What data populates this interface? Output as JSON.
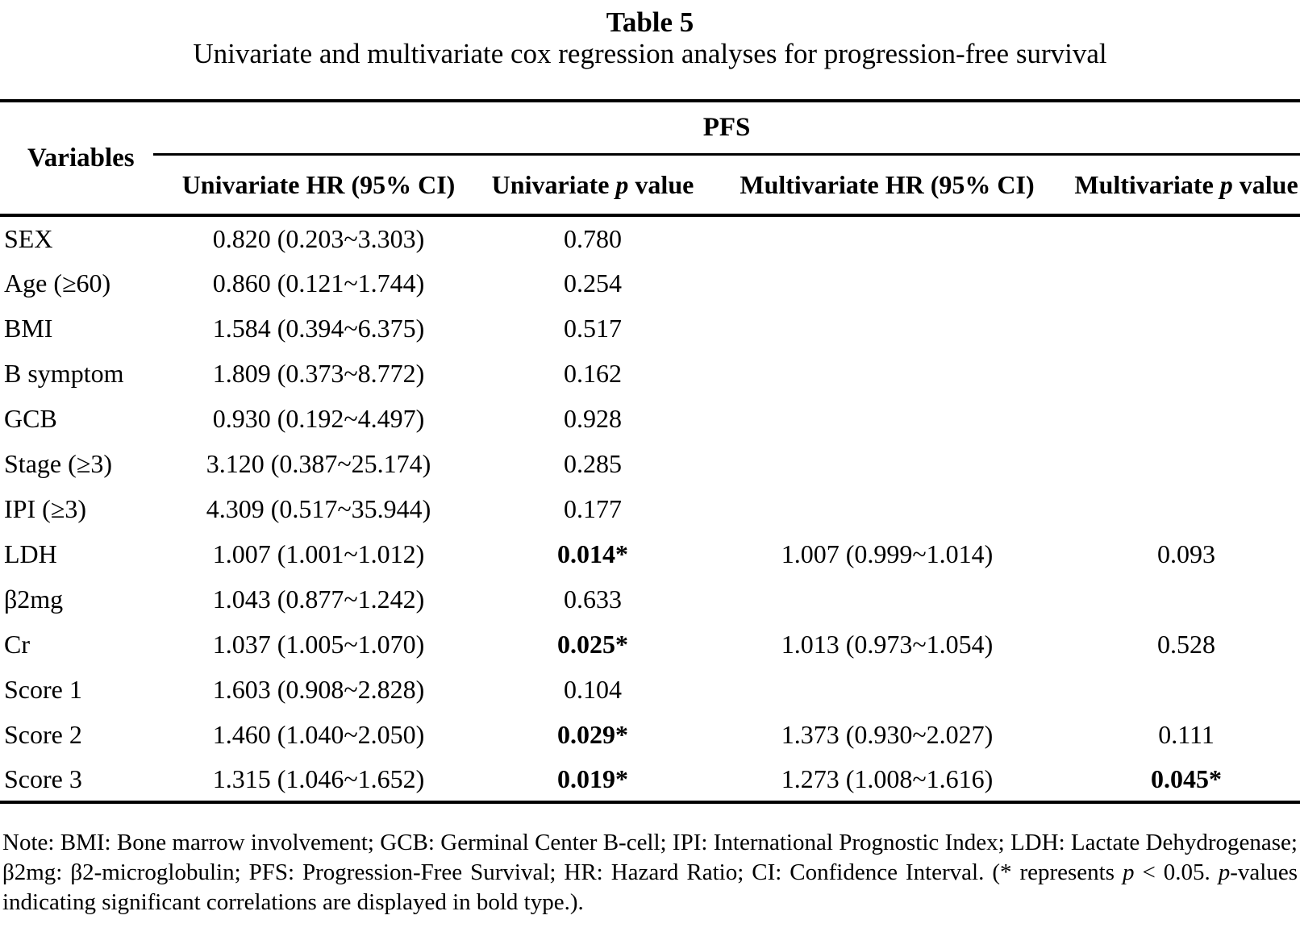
{
  "title": "Table 5",
  "subtitle": "Univariate and multivariate cox regression analyses for progression-free survival",
  "colors": {
    "text": "#000000",
    "background": "#ffffff",
    "rule": "#000000"
  },
  "table": {
    "header": {
      "variables": "Variables",
      "group": "PFS",
      "columns": [
        {
          "pre": "Univariate HR (95% CI)",
          "em": "",
          "post": ""
        },
        {
          "pre": "Univariate ",
          "em": "p",
          "post": " value"
        },
        {
          "pre": "Multivariate HR (95% CI)",
          "em": "",
          "post": ""
        },
        {
          "pre": "Multivariate ",
          "em": "p",
          "post": " value"
        }
      ]
    },
    "rows": [
      {
        "variable": "SEX",
        "univariate_hr": "0.820 (0.203~3.303)",
        "univariate_p": "0.780",
        "univariate_p_significant": false,
        "multivariate_hr": "",
        "multivariate_p": "",
        "multivariate_p_significant": false
      },
      {
        "variable": "Age (≥60)",
        "univariate_hr": "0.860 (0.121~1.744)",
        "univariate_p": "0.254",
        "univariate_p_significant": false,
        "multivariate_hr": "",
        "multivariate_p": "",
        "multivariate_p_significant": false
      },
      {
        "variable": "BMI",
        "univariate_hr": "1.584 (0.394~6.375)",
        "univariate_p": "0.517",
        "univariate_p_significant": false,
        "multivariate_hr": "",
        "multivariate_p": "",
        "multivariate_p_significant": false
      },
      {
        "variable": "B symptom",
        "univariate_hr": "1.809 (0.373~8.772)",
        "univariate_p": "0.162",
        "univariate_p_significant": false,
        "multivariate_hr": "",
        "multivariate_p": "",
        "multivariate_p_significant": false
      },
      {
        "variable": "GCB",
        "univariate_hr": "0.930 (0.192~4.497)",
        "univariate_p": "0.928",
        "univariate_p_significant": false,
        "multivariate_hr": "",
        "multivariate_p": "",
        "multivariate_p_significant": false
      },
      {
        "variable": "Stage (≥3)",
        "univariate_hr": "3.120 (0.387~25.174)",
        "univariate_p": "0.285",
        "univariate_p_significant": false,
        "multivariate_hr": "",
        "multivariate_p": "",
        "multivariate_p_significant": false
      },
      {
        "variable": "IPI (≥3)",
        "univariate_hr": "4.309 (0.517~35.944)",
        "univariate_p": "0.177",
        "univariate_p_significant": false,
        "multivariate_hr": "",
        "multivariate_p": "",
        "multivariate_p_significant": false
      },
      {
        "variable": "LDH",
        "univariate_hr": "1.007 (1.001~1.012)",
        "univariate_p": "0.014*",
        "univariate_p_significant": true,
        "multivariate_hr": "1.007 (0.999~1.014)",
        "multivariate_p": "0.093",
        "multivariate_p_significant": false
      },
      {
        "variable": "β2mg",
        "univariate_hr": "1.043 (0.877~1.242)",
        "univariate_p": "0.633",
        "univariate_p_significant": false,
        "multivariate_hr": "",
        "multivariate_p": "",
        "multivariate_p_significant": false
      },
      {
        "variable": "Cr",
        "univariate_hr": "1.037 (1.005~1.070)",
        "univariate_p": "0.025*",
        "univariate_p_significant": true,
        "multivariate_hr": "1.013 (0.973~1.054)",
        "multivariate_p": "0.528",
        "multivariate_p_significant": false
      },
      {
        "variable": "Score 1",
        "univariate_hr": "1.603 (0.908~2.828)",
        "univariate_p": "0.104",
        "univariate_p_significant": false,
        "multivariate_hr": "",
        "multivariate_p": "",
        "multivariate_p_significant": false
      },
      {
        "variable": "Score 2",
        "univariate_hr": "1.460 (1.040~2.050)",
        "univariate_p": "0.029*",
        "univariate_p_significant": true,
        "multivariate_hr": "1.373 (0.930~2.027)",
        "multivariate_p": "0.111",
        "multivariate_p_significant": false
      },
      {
        "variable": "Score 3",
        "univariate_hr": "1.315 (1.046~1.652)",
        "univariate_p": "0.019*",
        "univariate_p_significant": true,
        "multivariate_hr": "1.273 (1.008~1.616)",
        "multivariate_p": "0.045*",
        "multivariate_p_significant": true
      }
    ]
  },
  "note": {
    "pre": "Note: BMI: Bone marrow involvement; GCB: Germinal Center B-cell; IPI: International Prognostic Index; LDH: Lactate Dehydrogenase; β2mg: β2-microglobulin; PFS: Progression-Free Survival; HR: Hazard Ratio; CI: Confidence Interval. (* represents ",
    "em1": "p",
    "mid": " < 0.05. ",
    "em2": "p",
    "post": "-values indicating significant correlations are displayed in bold type.)."
  }
}
